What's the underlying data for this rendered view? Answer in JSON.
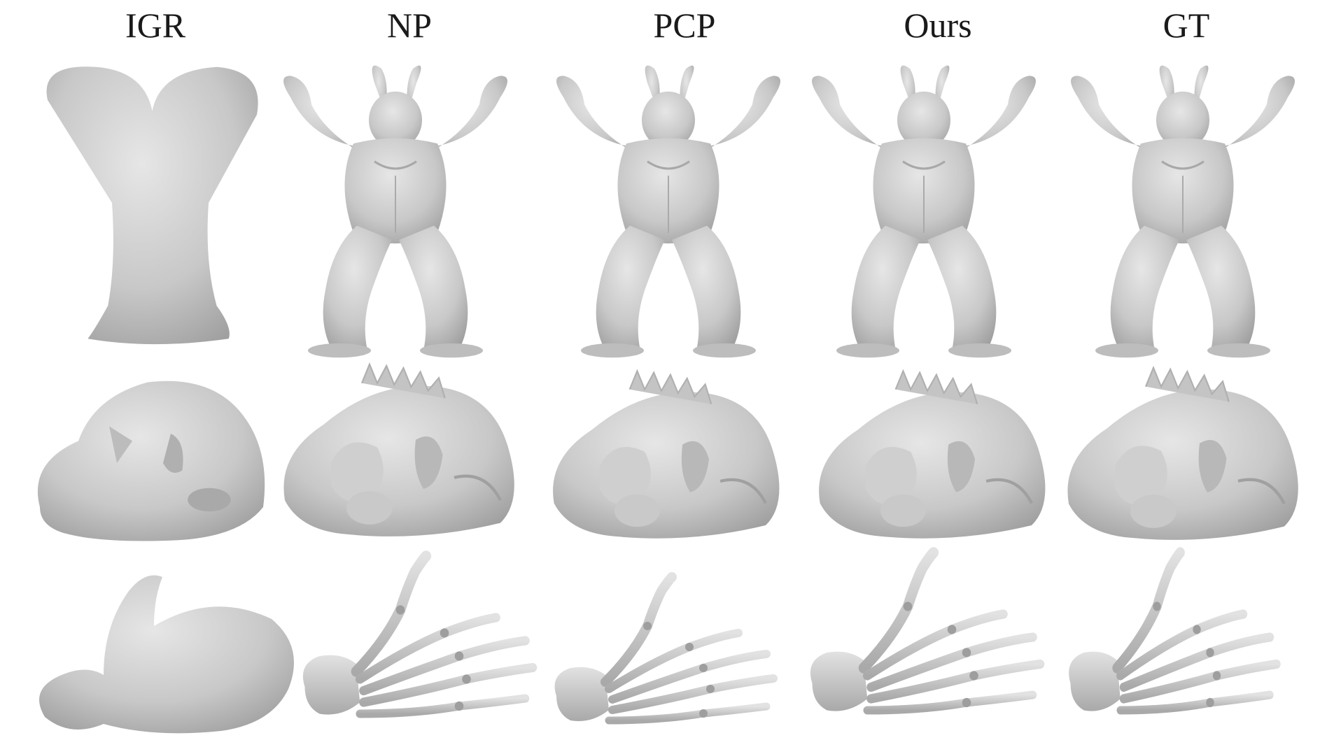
{
  "figure": {
    "columns": [
      {
        "key": "igr",
        "label": "IGR"
      },
      {
        "key": "np",
        "label": "NP"
      },
      {
        "key": "pcp",
        "label": "PCP"
      },
      {
        "key": "ours",
        "label": "Ours"
      },
      {
        "key": "gt",
        "label": "GT"
      }
    ],
    "rows": [
      {
        "key": "armadillo",
        "subject": "armadillo"
      },
      {
        "key": "dragon",
        "subject": "dragon"
      },
      {
        "key": "hand",
        "subject": "hand-skeleton"
      }
    ],
    "colors": {
      "background": "#ffffff",
      "mesh_light": "#d9d9d9",
      "mesh_mid": "#bdbdbd",
      "mesh_dark": "#9a9a9a",
      "header_text": "#1a1a1a"
    }
  }
}
